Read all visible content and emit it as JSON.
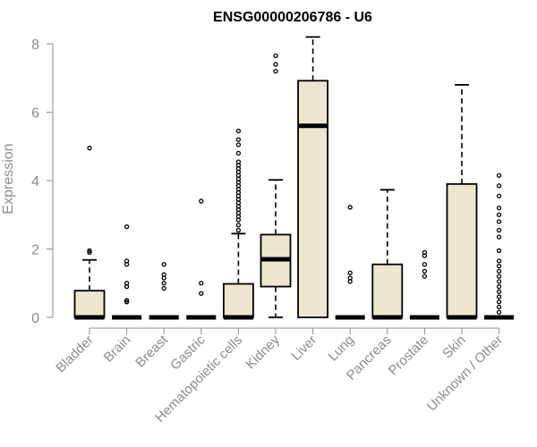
{
  "chart_data": {
    "type": "box",
    "title": "ENSG00000206786 - U6",
    "xlabel": "",
    "ylabel": "Expression",
    "ylim": [
      0,
      8.3
    ],
    "yticks": [
      0,
      2,
      4,
      6,
      8
    ],
    "grid": false,
    "legend": "none",
    "colors": {
      "box_fill": "#ede6cf",
      "box_stroke": "#000000",
      "axis": "#8c8c8c",
      "title": "#000000"
    },
    "categories": [
      "Bladder",
      "Brain",
      "Breast",
      "Gastric",
      "Hematopoietic cells",
      "Kidney",
      "Liver",
      "Lung",
      "Pancreas",
      "Prostate",
      "Skin",
      "Unknown / Other"
    ],
    "boxes": [
      {
        "category": "Bladder",
        "min": 0,
        "q1": 0,
        "median": 0,
        "q3": 0.78,
        "max": 1.68,
        "outliers": [
          1.9,
          1.95,
          4.95
        ]
      },
      {
        "category": "Brain",
        "min": 0,
        "q1": 0,
        "median": 0,
        "q3": 0,
        "max": 0,
        "outliers": [
          0.45,
          0.5,
          0.9,
          1.0,
          1.55,
          1.65,
          2.65
        ]
      },
      {
        "category": "Breast",
        "min": 0,
        "q1": 0,
        "median": 0,
        "q3": 0,
        "max": 0,
        "outliers": [
          0.85,
          1.0,
          1.15,
          1.25,
          1.55
        ]
      },
      {
        "category": "Gastric",
        "min": 0,
        "q1": 0,
        "median": 0,
        "q3": 0,
        "max": 0,
        "outliers": [
          0.7,
          1.0,
          3.4
        ]
      },
      {
        "category": "Hematopoietic cells",
        "min": 0,
        "q1": 0,
        "median": 0,
        "q3": 0.98,
        "max": 2.45,
        "outliers": [
          2.55,
          2.7,
          2.85,
          2.95,
          3.05,
          3.15,
          3.25,
          3.35,
          3.45,
          3.55,
          3.65,
          3.75,
          3.85,
          3.95,
          4.05,
          4.15,
          4.25,
          4.35,
          4.45,
          4.55,
          4.8,
          5.05,
          5.2,
          5.45
        ]
      },
      {
        "category": "Kidney",
        "min": 0,
        "q1": 0.9,
        "median": 1.7,
        "q3": 2.42,
        "max": 4.02,
        "outliers": [
          7.2,
          7.4,
          7.65
        ]
      },
      {
        "category": "Liver",
        "min": 0,
        "q1": 0,
        "median": 5.6,
        "q3": 6.92,
        "max": 8.2,
        "outliers": []
      },
      {
        "category": "Lung",
        "min": 0,
        "q1": 0,
        "median": 0,
        "q3": 0,
        "max": 0,
        "outliers": [
          1.05,
          1.15,
          1.3,
          3.22
        ]
      },
      {
        "category": "Pancreas",
        "min": 0,
        "q1": 0,
        "median": 0,
        "q3": 1.55,
        "max": 3.73,
        "outliers": []
      },
      {
        "category": "Prostate",
        "min": 0,
        "q1": 0,
        "median": 0,
        "q3": 0,
        "max": 0,
        "outliers": [
          1.2,
          1.35,
          1.55,
          1.8,
          1.9
        ]
      },
      {
        "category": "Skin",
        "min": 0,
        "q1": 0,
        "median": 0,
        "q3": 3.9,
        "max": 6.8,
        "outliers": []
      },
      {
        "category": "Unknown / Other",
        "min": 0,
        "q1": 0,
        "median": 0,
        "q3": 0,
        "max": 0,
        "outliers": [
          0.15,
          0.3,
          0.45,
          0.6,
          0.75,
          0.9,
          1.05,
          1.2,
          1.35,
          1.5,
          1.65,
          1.95,
          2.35,
          2.55,
          2.8,
          3.0,
          3.2,
          3.55,
          3.85,
          4.15
        ]
      }
    ]
  }
}
